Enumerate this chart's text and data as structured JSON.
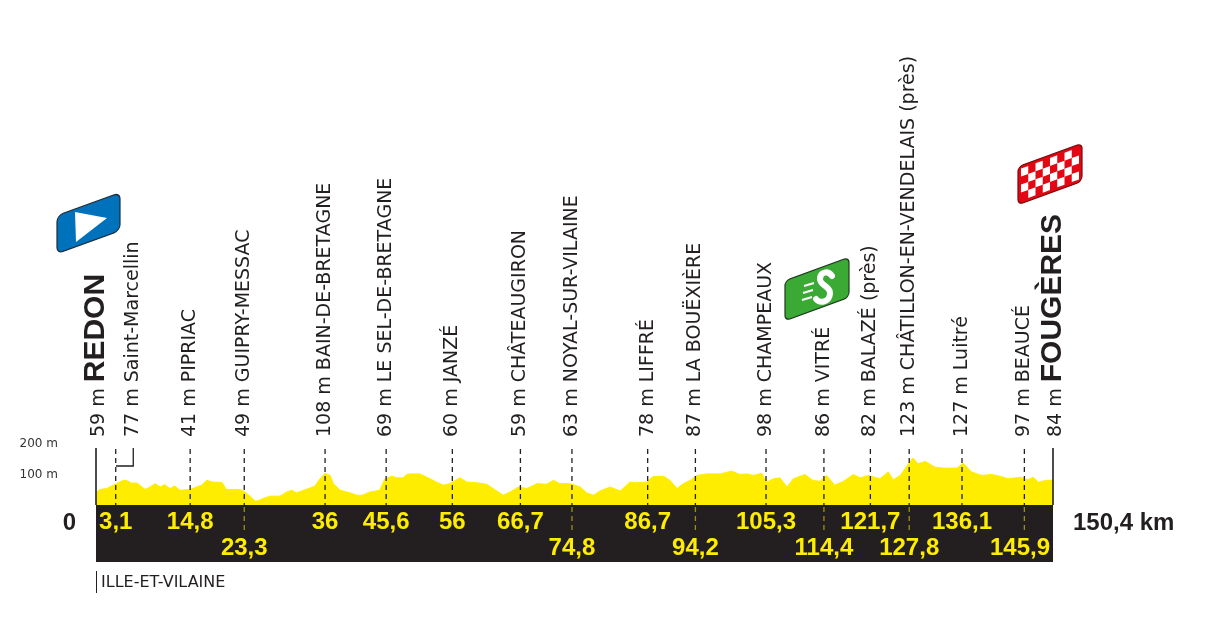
{
  "chart_data": {
    "type": "area",
    "x": [
      0,
      0.6,
      1.7,
      2.7,
      4.3,
      4.8,
      5.6,
      6.4,
      6.9,
      7.7,
      8.5,
      9.3,
      10.1,
      10.8,
      11.6,
      12.4,
      13.2,
      14.8,
      15.8,
      16.6,
      17.4,
      18.4,
      19.8,
      20.5,
      22.6,
      23.4,
      24.2,
      25,
      25.5,
      26.3,
      27.4,
      28.9,
      30,
      30.8,
      31.5,
      32.6,
      33.4,
      34.4,
      35.2,
      36,
      36.8,
      37.3,
      38.4,
      39.9,
      41,
      41.8,
      43.1,
      44.6,
      45.4,
      46.5,
      47.3,
      48.3,
      48.8,
      49.4,
      50.9,
      52.5,
      53.5,
      54.6,
      55.6,
      57.2,
      58.3,
      59.8,
      61.4,
      62.4,
      64,
      65.1,
      66.4,
      67.7,
      69.3,
      70.8,
      71.9,
      72.9,
      74.5,
      76.1,
      77.1,
      78.2,
      79.2,
      80.8,
      82.4,
      83.9,
      85,
      86.5,
      87.6,
      89.2,
      90.2,
      91.3,
      92.3,
      93.4,
      94.4,
      96,
      98.1,
      99.9,
      101.2,
      102.3,
      103.3,
      104.6,
      105.4,
      106.5,
      107.5,
      108.6,
      109.6,
      111.4,
      112.7,
      113.8,
      114.8,
      116.1,
      117.5,
      119,
      120.1,
      121.4,
      123.2,
      124.5,
      125.3,
      126.4,
      127.7,
      128.4,
      129.2,
      130.3,
      131.9,
      133.2,
      135.3,
      136.3,
      137.6,
      139.2,
      140.8,
      142.1,
      143.4,
      145.2,
      146.5,
      147.3,
      148.1,
      149.4,
      150.4
    ],
    "values": [
      40,
      51,
      54,
      65,
      81,
      80,
      72,
      72,
      65,
      51,
      59,
      70,
      59,
      67,
      54,
      62,
      48,
      51,
      59,
      65,
      81,
      75,
      74,
      51,
      51,
      43,
      29,
      13,
      14,
      22,
      29,
      29,
      43,
      48,
      40,
      48,
      54,
      62,
      86,
      104,
      97,
      70,
      48,
      40,
      32,
      32,
      43,
      48,
      86,
      94,
      89,
      89,
      100,
      102,
      102,
      86,
      75,
      65,
      70,
      89,
      75,
      73,
      68,
      54,
      32,
      43,
      59,
      54,
      70,
      68,
      81,
      70,
      70,
      59,
      40,
      32,
      46,
      59,
      46,
      75,
      73,
      75,
      94,
      94,
      81,
      54,
      70,
      81,
      97,
      102,
      102,
      111,
      100,
      102,
      97,
      104,
      75,
      86,
      89,
      59,
      86,
      100,
      80,
      78,
      97,
      65,
      78,
      100,
      89,
      97,
      86,
      108,
      83,
      97,
      135,
      154,
      135,
      143,
      124,
      121,
      121,
      137,
      108,
      97,
      100,
      94,
      86,
      91,
      83,
      91,
      75,
      81,
      81
    ],
    "color": "#ffed00",
    "xlim": [
      0,
      150.4
    ],
    "xticks": [
      {
        "value": 3.1,
        "label": "3,1"
      },
      {
        "value": 14.8,
        "label": "14,8"
      },
      36,
      {
        "value": 45.6,
        "label": "45,6"
      },
      56,
      {
        "value": 66.7,
        "label": "66,7"
      },
      {
        "value": 86.7,
        "label": "86,7"
      },
      {
        "value": 105.3,
        "label": "105,3"
      },
      {
        "value": 121.7,
        "label": "121,7"
      },
      {
        "value": 136.1,
        "label": "136,1"
      }
    ],
    "x2lim": [
      0,
      150.4
    ],
    "x2ticks": [
      {
        "value": 23.3,
        "label": "23,3"
      },
      {
        "value": 74.8,
        "label": "74,8"
      },
      {
        "value": 94.2,
        "label": "94,2"
      },
      {
        "value": 114.4,
        "label": "114,4"
      },
      {
        "value": 127.8,
        "label": "127,8"
      },
      {
        "value": 145.9,
        "label": "145,9"
      }
    ],
    "ylim": [
      0,
      200
    ],
    "yticks": [
      {
        "value": 100,
        "label": "100 m"
      },
      {
        "value": 200,
        "label": "200 m"
      }
    ],
    "grid": "x",
    "ref_lines": [
      {
        "axis": "x",
        "value": 0,
        "label": "REDON"
      },
      {
        "axis": "x",
        "value": 150.4,
        "label": "FOUGÈRES"
      }
    ],
    "annotations": [
      "59 m",
      "77 m Saint-Marcellin",
      "41 m PIPRIAC",
      "49 m GUIPRY-MESSAC",
      "108 m BAIN-DE-BRETAGNE",
      "69 m LE SEL-DE-BRETAGNE",
      "60 m JANZÉ",
      "59 m CHÂTEAUGIRON",
      "63 m NOYAL-SUR-VILAINE",
      "78 m LIFFRÉ",
      "87 m LA BOUËXIÈRE",
      "98 m CHAMPEAUX",
      "86 m VITRÉ",
      "82 m BALAZÉ (près)",
      "123 m CHÂTILLON-EN-VENDELAIS (près)",
      "127 m Luitré",
      "97 m BEAUCÉ",
      "84 m",
      "0",
      "150,4 km",
      "ILLE-ET-VILAINE"
    ]
  }
}
